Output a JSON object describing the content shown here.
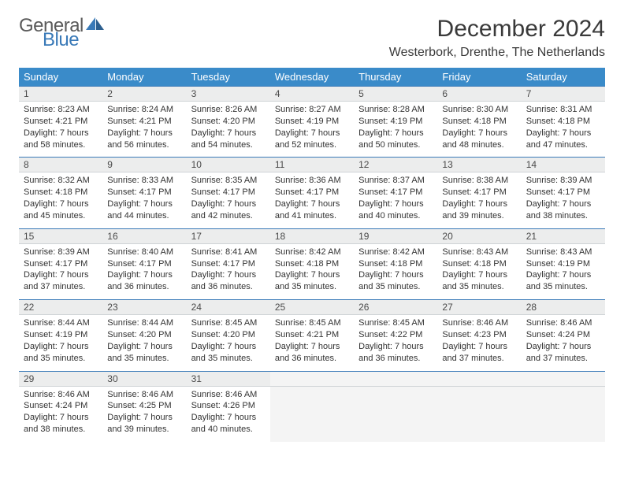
{
  "logo": {
    "general": "General",
    "blue": "Blue"
  },
  "title": "December 2024",
  "location": "Westerbork, Drenthe, The Netherlands",
  "colors": {
    "header_bg": "#3a8bc9",
    "header_text": "#ffffff",
    "daynum_bg": "#eceded",
    "border_top": "#3a7ab8",
    "logo_gray": "#5a5a5a",
    "logo_blue": "#3a7ab8"
  },
  "weekdays": [
    "Sunday",
    "Monday",
    "Tuesday",
    "Wednesday",
    "Thursday",
    "Friday",
    "Saturday"
  ],
  "weeks": [
    [
      {
        "n": "1",
        "sr": "8:23 AM",
        "ss": "4:21 PM",
        "dl": "7 hours and 58 minutes."
      },
      {
        "n": "2",
        "sr": "8:24 AM",
        "ss": "4:21 PM",
        "dl": "7 hours and 56 minutes."
      },
      {
        "n": "3",
        "sr": "8:26 AM",
        "ss": "4:20 PM",
        "dl": "7 hours and 54 minutes."
      },
      {
        "n": "4",
        "sr": "8:27 AM",
        "ss": "4:19 PM",
        "dl": "7 hours and 52 minutes."
      },
      {
        "n": "5",
        "sr": "8:28 AM",
        "ss": "4:19 PM",
        "dl": "7 hours and 50 minutes."
      },
      {
        "n": "6",
        "sr": "8:30 AM",
        "ss": "4:18 PM",
        "dl": "7 hours and 48 minutes."
      },
      {
        "n": "7",
        "sr": "8:31 AM",
        "ss": "4:18 PM",
        "dl": "7 hours and 47 minutes."
      }
    ],
    [
      {
        "n": "8",
        "sr": "8:32 AM",
        "ss": "4:18 PM",
        "dl": "7 hours and 45 minutes."
      },
      {
        "n": "9",
        "sr": "8:33 AM",
        "ss": "4:17 PM",
        "dl": "7 hours and 44 minutes."
      },
      {
        "n": "10",
        "sr": "8:35 AM",
        "ss": "4:17 PM",
        "dl": "7 hours and 42 minutes."
      },
      {
        "n": "11",
        "sr": "8:36 AM",
        "ss": "4:17 PM",
        "dl": "7 hours and 41 minutes."
      },
      {
        "n": "12",
        "sr": "8:37 AM",
        "ss": "4:17 PM",
        "dl": "7 hours and 40 minutes."
      },
      {
        "n": "13",
        "sr": "8:38 AM",
        "ss": "4:17 PM",
        "dl": "7 hours and 39 minutes."
      },
      {
        "n": "14",
        "sr": "8:39 AM",
        "ss": "4:17 PM",
        "dl": "7 hours and 38 minutes."
      }
    ],
    [
      {
        "n": "15",
        "sr": "8:39 AM",
        "ss": "4:17 PM",
        "dl": "7 hours and 37 minutes."
      },
      {
        "n": "16",
        "sr": "8:40 AM",
        "ss": "4:17 PM",
        "dl": "7 hours and 36 minutes."
      },
      {
        "n": "17",
        "sr": "8:41 AM",
        "ss": "4:17 PM",
        "dl": "7 hours and 36 minutes."
      },
      {
        "n": "18",
        "sr": "8:42 AM",
        "ss": "4:18 PM",
        "dl": "7 hours and 35 minutes."
      },
      {
        "n": "19",
        "sr": "8:42 AM",
        "ss": "4:18 PM",
        "dl": "7 hours and 35 minutes."
      },
      {
        "n": "20",
        "sr": "8:43 AM",
        "ss": "4:18 PM",
        "dl": "7 hours and 35 minutes."
      },
      {
        "n": "21",
        "sr": "8:43 AM",
        "ss": "4:19 PM",
        "dl": "7 hours and 35 minutes."
      }
    ],
    [
      {
        "n": "22",
        "sr": "8:44 AM",
        "ss": "4:19 PM",
        "dl": "7 hours and 35 minutes."
      },
      {
        "n": "23",
        "sr": "8:44 AM",
        "ss": "4:20 PM",
        "dl": "7 hours and 35 minutes."
      },
      {
        "n": "24",
        "sr": "8:45 AM",
        "ss": "4:20 PM",
        "dl": "7 hours and 35 minutes."
      },
      {
        "n": "25",
        "sr": "8:45 AM",
        "ss": "4:21 PM",
        "dl": "7 hours and 36 minutes."
      },
      {
        "n": "26",
        "sr": "8:45 AM",
        "ss": "4:22 PM",
        "dl": "7 hours and 36 minutes."
      },
      {
        "n": "27",
        "sr": "8:46 AM",
        "ss": "4:23 PM",
        "dl": "7 hours and 37 minutes."
      },
      {
        "n": "28",
        "sr": "8:46 AM",
        "ss": "4:24 PM",
        "dl": "7 hours and 37 minutes."
      }
    ],
    [
      {
        "n": "29",
        "sr": "8:46 AM",
        "ss": "4:24 PM",
        "dl": "7 hours and 38 minutes."
      },
      {
        "n": "30",
        "sr": "8:46 AM",
        "ss": "4:25 PM",
        "dl": "7 hours and 39 minutes."
      },
      {
        "n": "31",
        "sr": "8:46 AM",
        "ss": "4:26 PM",
        "dl": "7 hours and 40 minutes."
      },
      null,
      null,
      null,
      null
    ]
  ],
  "labels": {
    "sunrise": "Sunrise:",
    "sunset": "Sunset:",
    "daylight": "Daylight:"
  }
}
